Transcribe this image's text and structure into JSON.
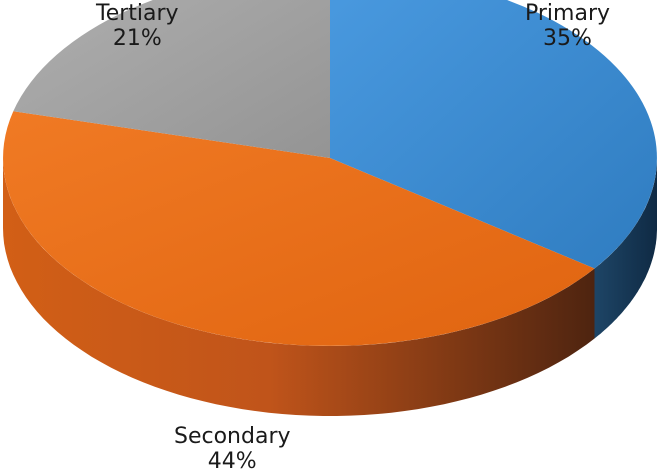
{
  "chart_data": {
    "type": "pie",
    "style": "3d",
    "slices": [
      {
        "label": "Primary",
        "value": 35,
        "value_label": "35%",
        "color": "#3f8fd2"
      },
      {
        "label": "Secondary",
        "value": 44,
        "value_label": "44%",
        "color": "#ec6e1c"
      },
      {
        "label": "Tertiary",
        "value": 21,
        "value_label": "21%",
        "color": "#a3a3a3"
      }
    ],
    "title": "",
    "legend": "none"
  }
}
